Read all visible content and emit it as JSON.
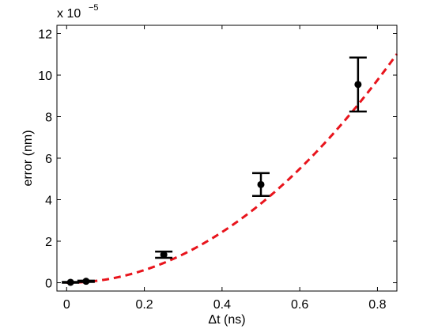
{
  "chart_data": {
    "type": "scatter",
    "title": "",
    "xlabel": "Δt (ns)",
    "ylabel": "error (nm)",
    "xlim": [
      -0.025,
      0.85
    ],
    "ylim": [
      -0.4,
      12.4
    ],
    "xticks": [
      0,
      0.2,
      0.4,
      0.6,
      0.8
    ],
    "xtick_labels": [
      "0",
      "0.2",
      "0.4",
      "0.6",
      "0.8"
    ],
    "yticks": [
      0,
      2,
      4,
      6,
      8,
      10,
      12
    ],
    "ytick_labels": [
      "0",
      "2",
      "4",
      "6",
      "8",
      "10",
      "12"
    ],
    "y_multiplier": {
      "base": "x 10",
      "exponent": "−5"
    },
    "grid": false,
    "series": [
      {
        "kind": "points_with_errorbars",
        "color": "#000000",
        "points": [
          {
            "x": 0.01,
            "y": 0.02,
            "err": 0.02
          },
          {
            "x": 0.05,
            "y": 0.07,
            "err": 0.03
          },
          {
            "x": 0.25,
            "y": 1.35,
            "err": 0.15
          },
          {
            "x": 0.5,
            "y": 4.73,
            "err": 0.55
          },
          {
            "x": 0.75,
            "y": 9.55,
            "err": 1.3
          }
        ]
      },
      {
        "kind": "fit_curve",
        "style": "dashed",
        "color": "#e8141c",
        "model": "quadratic",
        "coefficient": 15.25
      }
    ]
  }
}
